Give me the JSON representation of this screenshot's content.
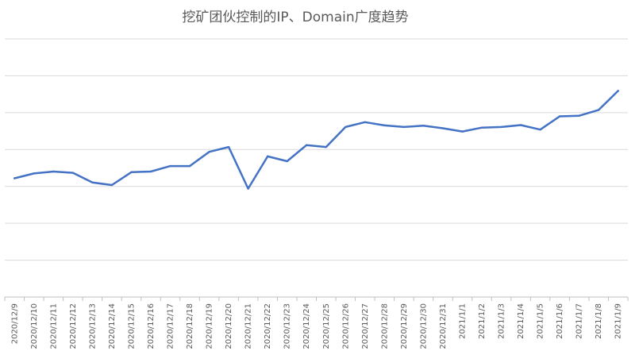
{
  "chart_data": {
    "type": "line",
    "title": "挖矿团伙控制的IP、Domain广度趋势",
    "xlabel": "",
    "ylabel": "",
    "grid": true,
    "legend": "none",
    "ylim": [
      0,
      8
    ],
    "line_color": "#4472C4",
    "grid_color": "#D9D9D9",
    "categories": [
      "2020/12/9",
      "2020/12/10",
      "2020/12/11",
      "2020/12/12",
      "2020/12/13",
      "2020/12/14",
      "2020/12/15",
      "2020/12/16",
      "2020/12/17",
      "2020/12/18",
      "2020/12/19",
      "2020/12/20",
      "2020/12/21",
      "2020/12/22",
      "2020/12/23",
      "2020/12/24",
      "2020/12/25",
      "2020/12/26",
      "2020/12/27",
      "2020/12/28",
      "2020/12/29",
      "2020/12/30",
      "2020/12/31",
      "2021/1/1",
      "2021/1/2",
      "2021/1/3",
      "2021/1/4",
      "2021/1/5",
      "2021/1/6",
      "2021/1/7",
      "2021/1/8",
      "2021/1/9"
    ],
    "values": [
      3.68,
      3.83,
      3.89,
      3.85,
      3.55,
      3.47,
      3.87,
      3.89,
      4.06,
      4.06,
      4.5,
      4.65,
      3.36,
      4.36,
      4.21,
      4.71,
      4.65,
      5.27,
      5.42,
      5.32,
      5.27,
      5.31,
      5.23,
      5.13,
      5.25,
      5.27,
      5.33,
      5.19,
      5.6,
      5.62,
      5.8,
      6.39
    ]
  }
}
